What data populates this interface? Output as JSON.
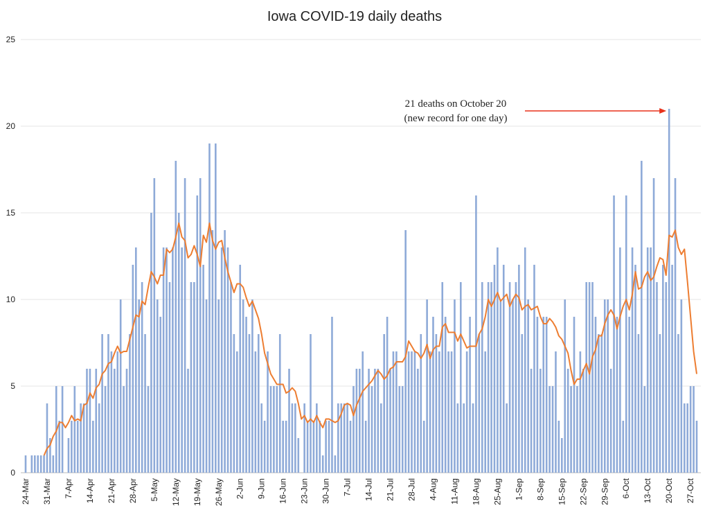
{
  "chart_data": {
    "type": "bar",
    "title": "Iowa COVID-19 daily deaths",
    "annotation": [
      "21 deaths on October 20",
      "(new record for one day)"
    ],
    "annotation_index": 210,
    "categories": [
      "24-Mar",
      null,
      null,
      null,
      null,
      null,
      null,
      "31-Mar",
      null,
      null,
      null,
      null,
      null,
      null,
      "7-Apr",
      null,
      null,
      null,
      null,
      null,
      null,
      "14-Apr",
      null,
      null,
      null,
      null,
      null,
      null,
      "21-Apr",
      null,
      null,
      null,
      null,
      null,
      null,
      "28-Apr",
      null,
      null,
      null,
      null,
      null,
      null,
      "5-May",
      null,
      null,
      null,
      null,
      null,
      null,
      "12-May",
      null,
      null,
      null,
      null,
      null,
      null,
      "19-May",
      null,
      null,
      null,
      null,
      null,
      null,
      "26-May",
      null,
      null,
      null,
      null,
      null,
      null,
      "2-Jun",
      null,
      null,
      null,
      null,
      null,
      null,
      "9-Jun",
      null,
      null,
      null,
      null,
      null,
      null,
      "16-Jun",
      null,
      null,
      null,
      null,
      null,
      null,
      "23-Jun",
      null,
      null,
      null,
      null,
      null,
      null,
      "30-Jun",
      null,
      null,
      null,
      null,
      null,
      null,
      "7-Jul",
      null,
      null,
      null,
      null,
      null,
      null,
      "14-Jul",
      null,
      null,
      null,
      null,
      null,
      null,
      "21-Jul",
      null,
      null,
      null,
      null,
      null,
      null,
      "28-Jul",
      null,
      null,
      null,
      null,
      null,
      null,
      "4-Aug",
      null,
      null,
      null,
      null,
      null,
      null,
      "11-Aug",
      null,
      null,
      null,
      null,
      null,
      null,
      "18-Aug",
      null,
      null,
      null,
      null,
      null,
      null,
      "25-Aug",
      null,
      null,
      null,
      null,
      null,
      null,
      "1-Sep",
      null,
      null,
      null,
      null,
      null,
      null,
      "8-Sep",
      null,
      null,
      null,
      null,
      null,
      null,
      "15-Sep",
      null,
      null,
      null,
      null,
      null,
      null,
      "22-Sep",
      null,
      null,
      null,
      null,
      null,
      null,
      "29-Sep",
      null,
      null,
      null,
      null,
      null,
      null,
      "6-Oct",
      null,
      null,
      null,
      null,
      null,
      null,
      "13-Oct",
      null,
      null,
      null,
      null,
      null,
      null,
      "20-Oct",
      null,
      null,
      null,
      null,
      null,
      null,
      "27-Oct",
      null,
      null
    ],
    "series": [
      {
        "type": "bar",
        "color": "#8eaad8",
        "values": [
          1,
          0,
          1,
          1,
          1,
          1,
          1,
          4,
          2,
          1,
          5,
          3,
          5,
          0,
          2,
          3,
          5,
          3,
          4,
          4,
          6,
          6,
          3,
          6,
          4,
          8,
          5,
          8,
          7,
          6,
          7,
          10,
          5,
          6,
          8,
          12,
          13,
          10,
          11,
          8,
          5,
          15,
          17,
          10,
          9,
          13,
          13,
          11,
          13,
          18,
          15,
          13,
          17,
          6,
          11,
          11,
          16,
          17,
          12,
          10,
          19,
          14,
          19,
          10,
          13,
          14,
          13,
          11,
          8,
          7,
          12,
          10,
          9,
          8,
          10,
          7,
          8,
          4,
          3,
          7,
          5,
          5,
          5,
          8,
          3,
          3,
          6,
          4,
          4,
          2,
          0,
          4,
          3,
          8,
          3,
          4,
          3,
          1,
          3,
          3,
          9,
          1,
          4,
          4,
          4,
          4,
          3,
          5,
          6,
          6,
          7,
          3,
          6,
          5,
          6,
          6,
          4,
          8,
          9,
          6,
          7,
          7,
          5,
          5,
          14,
          7,
          7,
          7,
          6,
          8,
          3,
          10,
          7,
          9,
          8,
          7,
          11,
          9,
          7,
          7,
          10,
          4,
          11,
          4,
          7,
          9,
          4,
          16,
          8,
          11,
          7,
          11,
          11,
          12,
          13,
          10,
          12,
          4,
          11,
          10,
          11,
          12,
          8,
          13,
          10,
          6,
          12,
          9,
          6,
          9,
          9,
          5,
          5,
          7,
          3,
          2,
          10,
          6,
          5,
          9,
          5,
          7,
          6,
          11,
          11,
          11,
          9,
          8,
          8,
          10,
          10,
          6,
          16,
          9,
          13,
          3,
          16,
          9,
          13,
          12,
          8,
          18,
          5,
          13,
          13,
          17,
          11,
          8,
          12,
          11,
          21,
          12,
          17,
          8,
          10,
          4,
          4,
          5,
          5,
          3
        ]
      },
      {
        "type": "line",
        "color": "#ed7d31",
        "values": [
          null,
          null,
          null,
          null,
          null,
          null,
          1.0,
          1.4,
          1.6,
          2.1,
          2.4,
          2.9,
          2.9,
          2.6,
          2.9,
          3.3,
          3.0,
          3.1,
          3.0,
          3.9,
          4.0,
          4.6,
          4.3,
          4.9,
          5.1,
          5.7,
          5.9,
          6.3,
          6.4,
          6.9,
          7.3,
          6.9,
          7.0,
          7.0,
          7.7,
          8.4,
          9.1,
          9.0,
          9.9,
          9.7,
          10.7,
          11.6,
          11.3,
          10.9,
          11.4,
          11.4,
          12.9,
          12.7,
          12.9,
          13.6,
          14.4,
          13.6,
          13.4,
          12.4,
          12.6,
          13.1,
          12.6,
          11.9,
          13.7,
          13.3,
          14.4,
          13.4,
          12.9,
          13.3,
          13.4,
          12.4,
          11.6,
          11.0,
          10.4,
          10.9,
          10.9,
          10.7,
          10.1,
          9.6,
          9.9,
          9.4,
          8.9,
          8.0,
          6.9,
          6.3,
          5.7,
          5.4,
          5.1,
          5.1,
          5.1,
          4.6,
          4.7,
          4.9,
          4.7,
          4.0,
          3.1,
          3.3,
          2.9,
          3.1,
          2.9,
          3.3,
          2.9,
          2.6,
          3.1,
          3.1,
          3.0,
          2.9,
          3.0,
          3.4,
          3.9,
          4.0,
          3.9,
          3.3,
          3.9,
          4.3,
          4.7,
          4.9,
          5.1,
          5.3,
          5.6,
          5.9,
          5.7,
          5.4,
          5.6,
          6.0,
          6.1,
          6.4,
          6.4,
          6.4,
          6.7,
          7.6,
          7.3,
          7.0,
          6.9,
          6.6,
          6.9,
          7.4,
          6.6,
          7.1,
          7.3,
          7.3,
          8.4,
          8.6,
          8.1,
          8.1,
          8.1,
          7.6,
          8.0,
          7.6,
          7.2,
          7.3,
          7.3,
          7.3,
          8.0,
          8.3,
          9.0,
          10.0,
          9.6,
          10.0,
          10.4,
          9.9,
          10.1,
          10.3,
          9.6,
          10.0,
          10.3,
          10.1,
          9.4,
          9.6,
          9.7,
          9.4,
          9.5,
          9.6,
          9.0,
          8.6,
          8.6,
          8.9,
          8.7,
          8.4,
          7.9,
          7.7,
          7.3,
          6.9,
          5.9,
          5.1,
          5.4,
          5.4,
          5.9,
          6.3,
          5.7,
          6.7,
          7.1,
          7.9,
          7.9,
          8.6,
          9.1,
          9.4,
          9.1,
          8.3,
          9.0,
          9.6,
          10.0,
          9.4,
          10.3,
          11.6,
          10.6,
          10.7,
          11.3,
          11.6,
          11.1,
          11.3,
          11.9,
          12.4,
          12.3,
          11.4,
          13.7,
          13.6,
          14.0,
          13.0,
          12.6,
          12.9,
          11.0,
          9.0,
          7.0,
          5.7
        ]
      }
    ],
    "ylim": [
      0,
      25
    ],
    "yticks": [
      0,
      5,
      10,
      15,
      20,
      25
    ],
    "grid": true
  }
}
